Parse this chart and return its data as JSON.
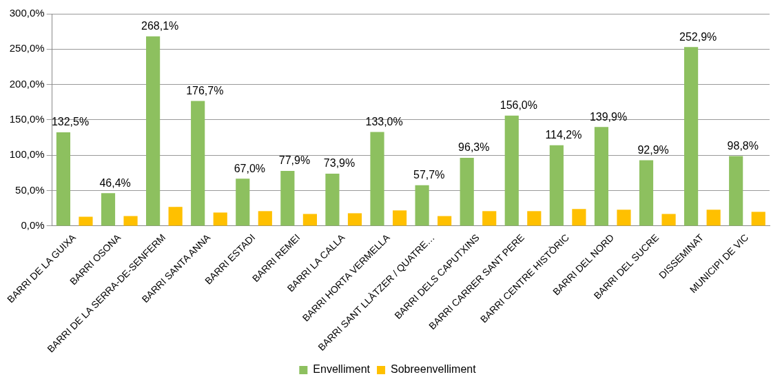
{
  "chart_data": {
    "type": "bar",
    "categories": [
      "BARRI DE LA GUIXA",
      "BARRI OSONA",
      "BARRI DE LA SERRA-DE-SENFERM",
      "BARRI SANTA ANNA",
      "BARRI ESTADI",
      "BARRI REMEI",
      "BARRI LA CALLA",
      "BARRI HORTA VERMELLA",
      "BARRI SANT LLÀTZER / QUATRE…",
      "BARRI DELS CAPUTXINS",
      "BARRI CARRER SANT PERE",
      "BARRI CENTRE HISTÒRIC",
      "BARRI DEL NORD",
      "BARRI DEL SUCRE",
      "DISSEMINAT",
      "MUNICIPI DE VIC"
    ],
    "series": [
      {
        "name": "Envelliment",
        "color": "#8dc05f",
        "values": [
          132.5,
          46.4,
          268.1,
          176.7,
          67.0,
          77.9,
          73.9,
          133.0,
          57.7,
          96.3,
          156.0,
          114.2,
          139.9,
          92.9,
          252.9,
          98.8
        ],
        "value_labels": [
          "132,5%",
          "46,4%",
          "268,1%",
          "176,7%",
          "67,0%",
          "77,9%",
          "73,9%",
          "133,0%",
          "57,7%",
          "96,3%",
          "156,0%",
          "114,2%",
          "139,9%",
          "92,9%",
          "252,9%",
          "98,8%"
        ]
      },
      {
        "name": "Sobreenvelliment",
        "color": "#ffc000",
        "values": [
          13,
          14,
          27,
          19,
          21,
          17,
          18,
          22,
          14,
          21,
          21,
          24,
          23,
          17,
          23,
          20
        ]
      }
    ],
    "ylim": [
      0,
      300
    ],
    "yticks": [
      {
        "value": 0,
        "label": "0,0%"
      },
      {
        "value": 50,
        "label": "50,0%"
      },
      {
        "value": 100,
        "label": "100,0%"
      },
      {
        "value": 150,
        "label": "150,0%"
      },
      {
        "value": 200,
        "label": "200,0%"
      },
      {
        "value": 250,
        "label": "250,0%"
      },
      {
        "value": 300,
        "label": "300,0%"
      }
    ],
    "grid": "y",
    "legend": "bottom"
  }
}
